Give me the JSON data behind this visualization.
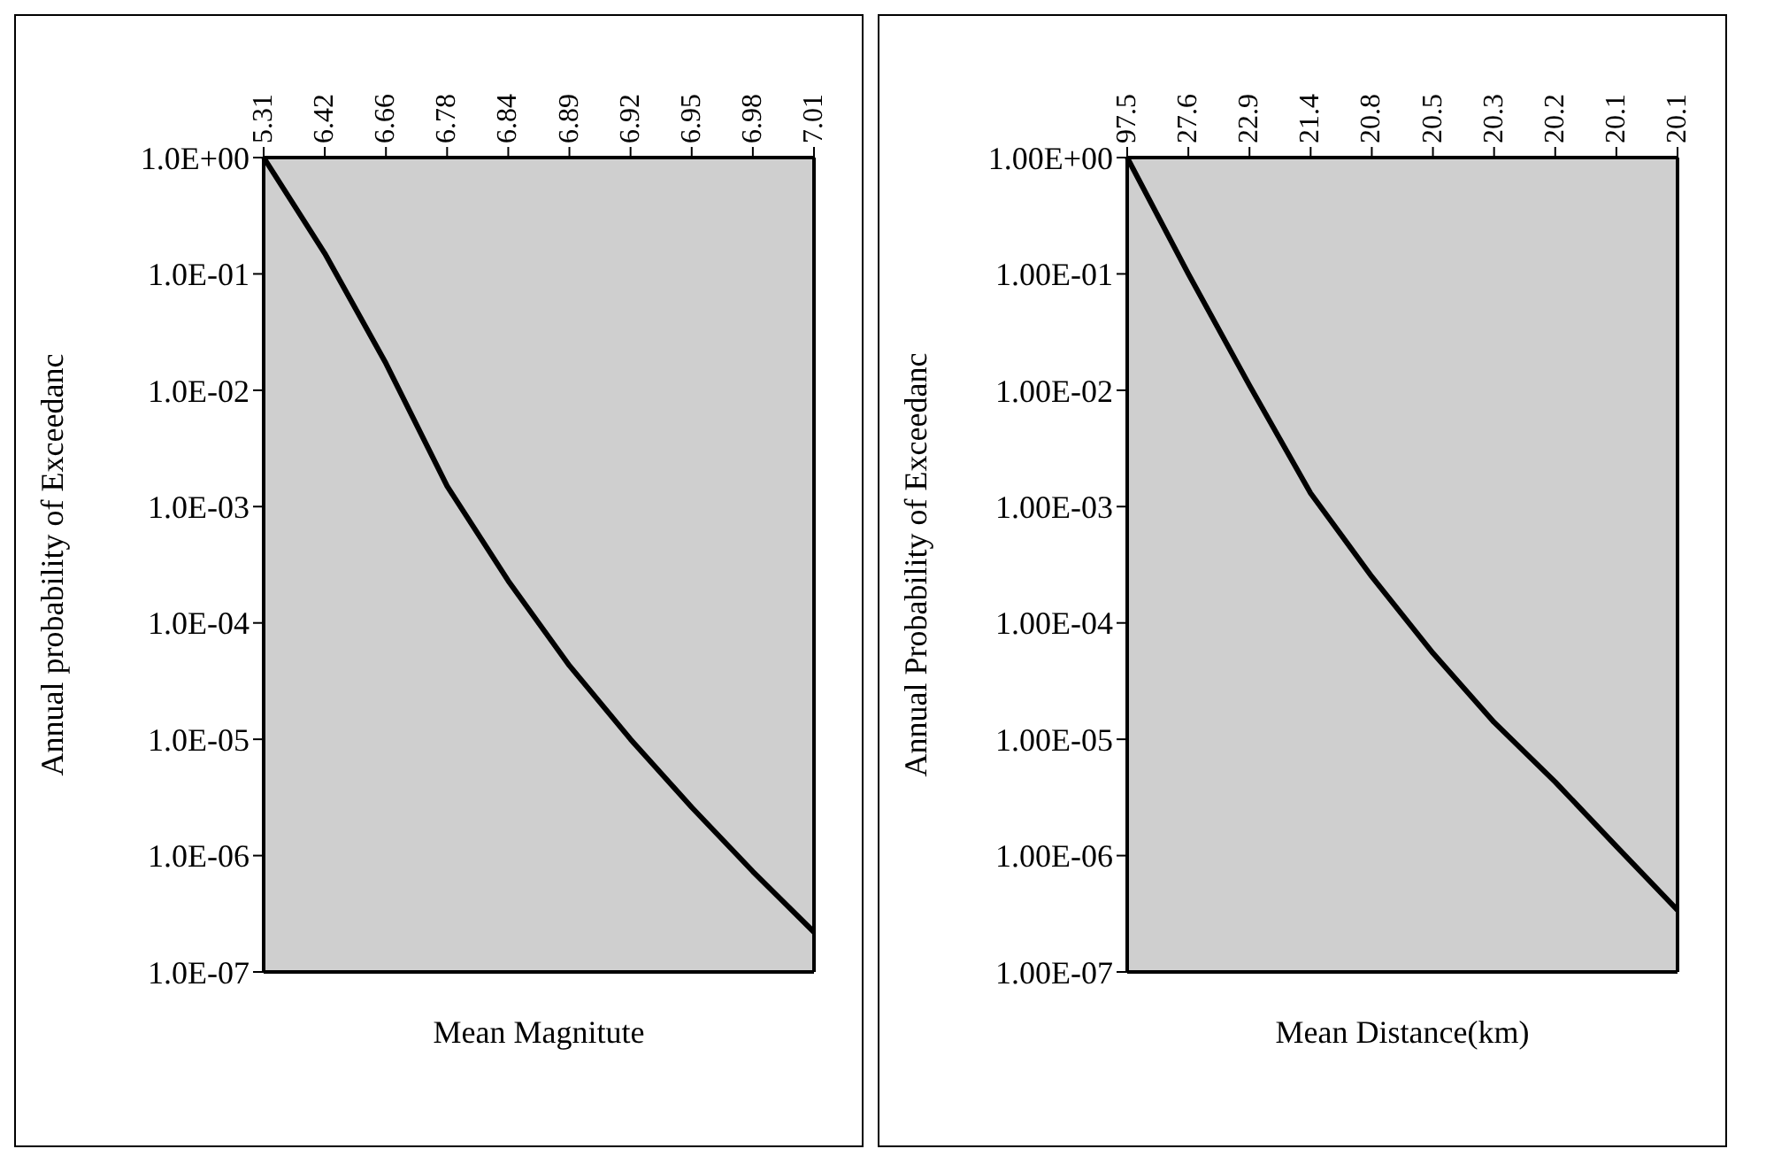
{
  "chart_data": [
    {
      "type": "line",
      "xlabel": "Mean Magnitute",
      "ylabel": "Annual probability of Exceedanc",
      "categories": [
        "5.31",
        "6.42",
        "6.66",
        "6.78",
        "6.84",
        "6.89",
        "6.92",
        "6.95",
        "6.98",
        "7.01"
      ],
      "series": [
        {
          "color": "#000000",
          "values": [
            1,
            0.15,
            0.017,
            0.0015,
            0.00023,
            4.3e-05,
            1e-05,
            2.6e-06,
            7.3e-07,
            2.2e-07
          ]
        }
      ],
      "log": "y",
      "ylim": [
        1e-07,
        1
      ],
      "yticks": [
        {
          "value": 1e-07,
          "label": "1.0E-07"
        },
        {
          "value": 1e-06,
          "label": "1.0E-06"
        },
        {
          "value": 1e-05,
          "label": "1.0E-05"
        },
        {
          "value": 0.0001,
          "label": "1.0E-04"
        },
        {
          "value": 0.001,
          "label": "1.0E-03"
        },
        {
          "value": 0.01,
          "label": "1.0E-02"
        },
        {
          "value": 0.1,
          "label": "1.0E-01"
        },
        {
          "value": 1,
          "label": "1.0E+00"
        }
      ],
      "grid": false,
      "legend": false,
      "marker": "none",
      "line_style": "solid"
    },
    {
      "type": "line",
      "xlabel": "Mean Distance(km)",
      "ylabel": "Annual Probability of Exceedanc",
      "categories": [
        "97.5",
        "27.6",
        "22.9",
        "21.4",
        "20.8",
        "20.5",
        "20.3",
        "20.2",
        "20.1",
        "20.1"
      ],
      "series": [
        {
          "color": "#000000",
          "values": [
            1,
            0.1,
            0.011,
            0.0013,
            0.00025,
            5.5e-05,
            1.4e-05,
            4.3e-06,
            1.2e-06,
            3.4e-07
          ]
        }
      ],
      "log": "y",
      "ylim": [
        1e-07,
        1
      ],
      "yticks": [
        {
          "value": 1e-07,
          "label": "1.00E-07"
        },
        {
          "value": 1e-06,
          "label": "1.00E-06"
        },
        {
          "value": 1e-05,
          "label": "1.00E-05"
        },
        {
          "value": 0.0001,
          "label": "1.00E-04"
        },
        {
          "value": 0.001,
          "label": "1.00E-03"
        },
        {
          "value": 0.01,
          "label": "1.00E-02"
        },
        {
          "value": 0.1,
          "label": "1.00E-01"
        },
        {
          "value": 1,
          "label": "1.00E+00"
        }
      ],
      "grid": false,
      "legend": false,
      "marker": "none",
      "line_style": "solid"
    }
  ]
}
